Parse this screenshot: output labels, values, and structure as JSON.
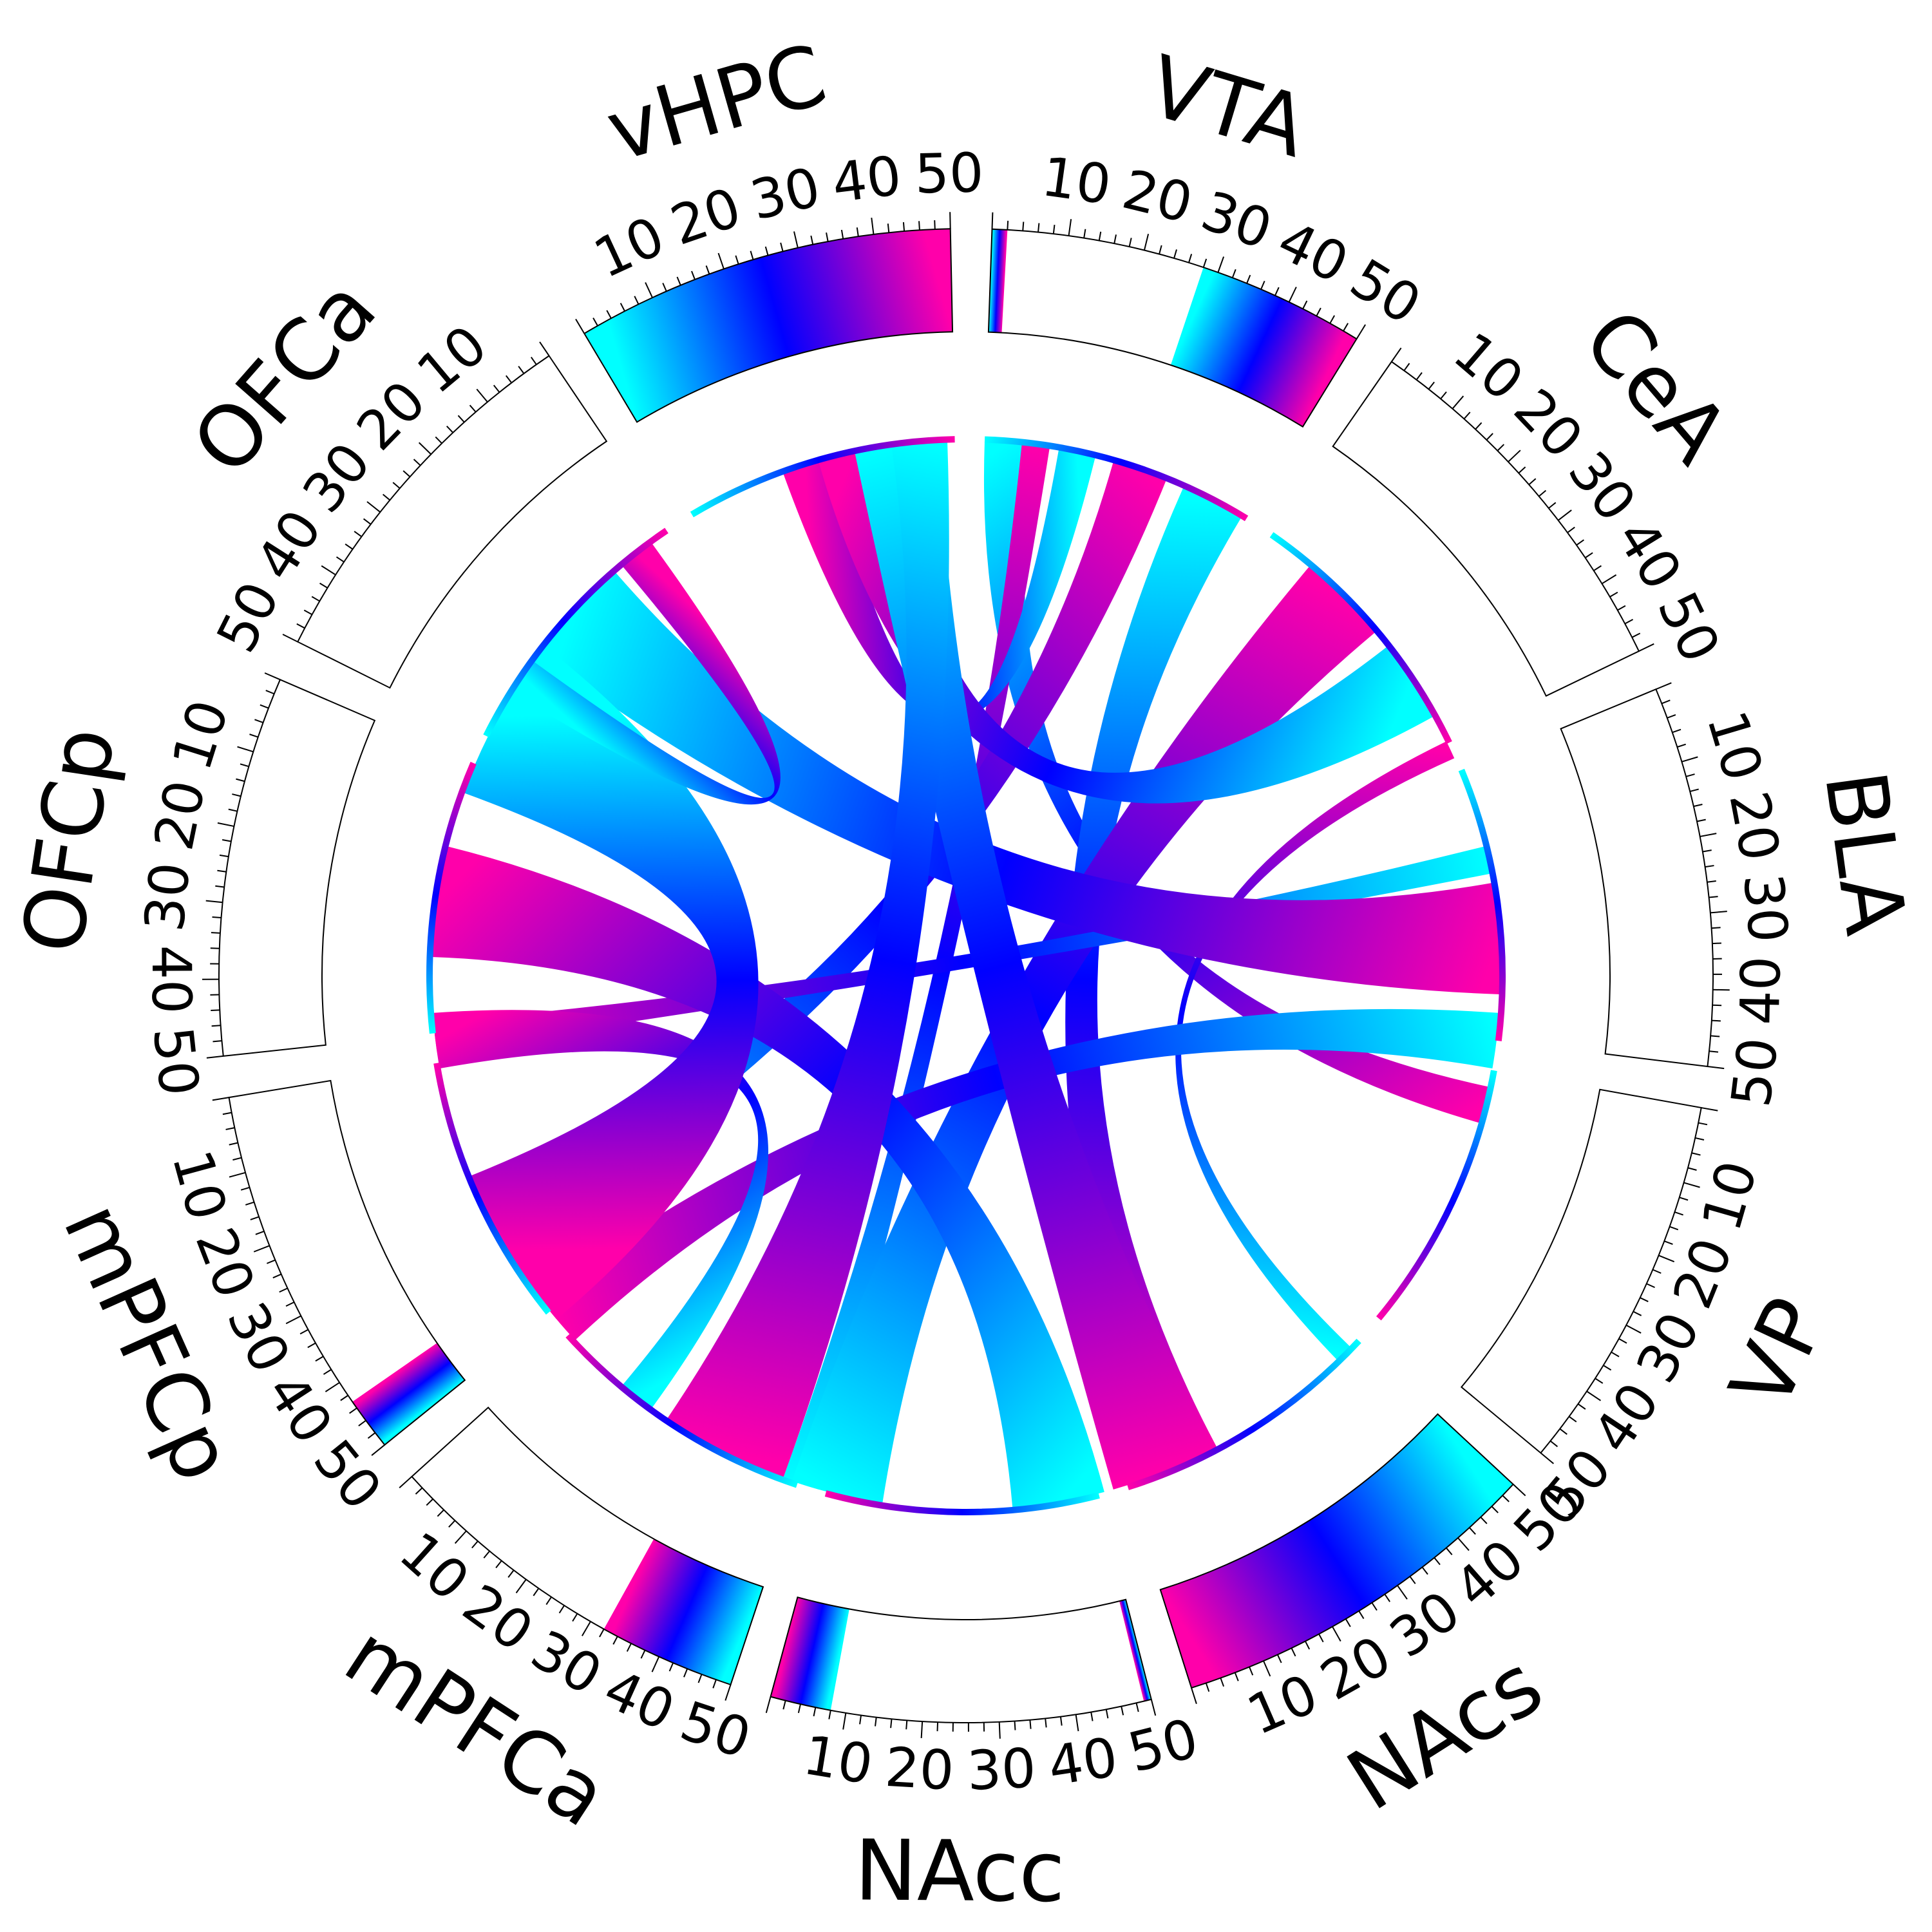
{
  "chart_data": {
    "type": "chord",
    "axis_max": 50,
    "tick_step": 10,
    "colors": {
      "low": "#00ffff",
      "mid": "#0000ff",
      "high": "#ff00aa"
    },
    "regions": [
      {
        "name": "VTA",
        "start_deg": 0,
        "end_deg": 32.7,
        "reverse": false
      },
      {
        "name": "CeA",
        "start_deg": 36,
        "end_deg": 68.7,
        "reverse": false
      },
      {
        "name": "BLA",
        "start_deg": 72,
        "end_deg": 104.7,
        "reverse": false
      },
      {
        "name": "VP",
        "start_deg": 108,
        "end_deg": 140.7,
        "reverse": false
      },
      {
        "name": "NAcs",
        "start_deg": 144,
        "end_deg": 176.7,
        "reverse": true
      },
      {
        "name": "NAcc",
        "start_deg": 180,
        "end_deg": 212.7,
        "reverse": true
      },
      {
        "name": "mPFCa",
        "start_deg": 216,
        "end_deg": 248.7,
        "reverse": true
      },
      {
        "name": "mPFCp",
        "start_deg": 252,
        "end_deg": 284.7,
        "reverse": true
      },
      {
        "name": "OFCp",
        "start_deg": 288,
        "end_deg": 320.7,
        "reverse": true
      },
      {
        "name": "OFCa",
        "start_deg": 324,
        "end_deg": 356.7,
        "reverse": true
      },
      {
        "name": "vHPC",
        "start_deg": 324,
        "end_deg": 356.7,
        "reverse": false,
        "shifted": true
      }
    ],
    "outer_bands": [
      {
        "region": "VTA",
        "from": 0,
        "to": 2
      },
      {
        "region": "VTA",
        "from": 28,
        "to": 50
      },
      {
        "region": "vHPC",
        "from": 0,
        "to": 50
      },
      {
        "region": "NAcs",
        "from": 0,
        "to": 50
      },
      {
        "region": "NAcc",
        "from": 0,
        "to": 8
      },
      {
        "region": "NAcc",
        "from": 49,
        "to": 50
      },
      {
        "region": "mPFCa",
        "from": 32,
        "to": 50
      },
      {
        "region": "mPFCp",
        "from": 43,
        "to": 50
      }
    ],
    "chords": [
      {
        "from_deg": 0,
        "to_from_deg": 100,
        "width_deg": 5,
        "to_width_deg": 4
      },
      {
        "from_deg": 4,
        "to_from_deg": 194,
        "width_deg": 3,
        "to_width_deg": 4
      },
      {
        "from_deg": 8,
        "to_from_deg": 338,
        "width_deg": 4,
        "to_width_deg": 5
      },
      {
        "from_deg": 14,
        "to_from_deg": 238,
        "width_deg": 6,
        "to_width_deg": 6
      },
      {
        "from_deg": 22,
        "to_from_deg": 150,
        "width_deg": 7,
        "to_width_deg": 8
      },
      {
        "from_deg": 38,
        "to_from_deg": 187,
        "width_deg": 10,
        "to_width_deg": 10
      },
      {
        "from_deg": 50,
        "to_from_deg": 342,
        "width_deg": 9,
        "to_width_deg": 8
      },
      {
        "from_deg": 62,
        "to_from_deg": 132,
        "width_deg": 2,
        "to_width_deg": 2
      },
      {
        "from_deg": 74,
        "to_from_deg": 260,
        "width_deg": 3,
        "to_width_deg": 3
      },
      {
        "from_deg": 78,
        "to_from_deg": 305,
        "width_deg": 12,
        "to_width_deg": 12
      },
      {
        "from_deg": 92,
        "to_from_deg": 225,
        "width_deg": 6,
        "to_width_deg": 6
      },
      {
        "from_deg": 150,
        "to_from_deg": 346,
        "width_deg": 12,
        "to_width_deg": 9
      },
      {
        "from_deg": 163,
        "to_from_deg": 270,
        "width_deg": 10,
        "to_width_deg": 12
      },
      {
        "from_deg": 198,
        "to_from_deg": 350,
        "width_deg": 14,
        "to_width_deg": 6
      },
      {
        "from_deg": 214,
        "to_from_deg": 258,
        "width_deg": 4,
        "to_width_deg": 6
      },
      {
        "from_deg": 228,
        "to_from_deg": 288,
        "width_deg": 18,
        "to_width_deg": 18
      },
      {
        "from_deg": 300,
        "to_from_deg": 318,
        "width_deg": 4,
        "to_width_deg": 4
      }
    ]
  }
}
